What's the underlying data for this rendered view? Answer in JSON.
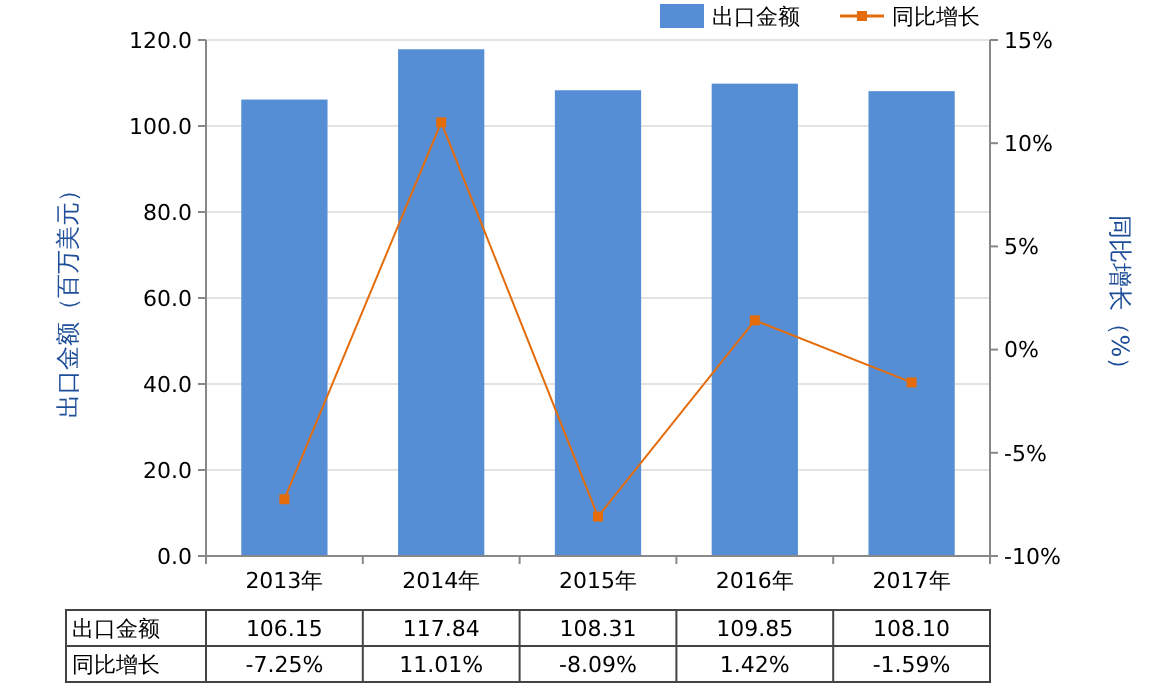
{
  "chart_data": {
    "type": "bar",
    "xlabel": null,
    "ylabel": "出口金额（百万美元）",
    "y2label": "同比增长（%）",
    "categories": [
      "2013年",
      "2014年",
      "2015年",
      "2016年",
      "2017年"
    ],
    "series": [
      {
        "name": "出口金额",
        "color": "#558ed5",
        "values": [
          106.15,
          117.84,
          108.31,
          109.85,
          108.1
        ],
        "value_labels": [
          "106.15",
          "117.84",
          "108.31",
          "109.85",
          "108.10"
        ]
      },
      {
        "name": "同比增长",
        "type": "line",
        "axis": "y2",
        "color": "#e46c0a",
        "values": [
          -7.25,
          11.01,
          -8.09,
          1.42,
          -1.59
        ],
        "value_labels": [
          "-7.25%",
          "11.01%",
          "-8.09%",
          "1.42%",
          "-1.59%"
        ]
      }
    ],
    "ylim": [
      0,
      120
    ],
    "yticks": [
      {
        "value": 0,
        "label": "0.0"
      },
      {
        "value": 20,
        "label": "20.0"
      },
      {
        "value": 40,
        "label": "40.0"
      },
      {
        "value": 60,
        "label": "60.0"
      },
      {
        "value": 80,
        "label": "80.0"
      },
      {
        "value": 100,
        "label": "100.0"
      },
      {
        "value": 120,
        "label": "120.0"
      }
    ],
    "y2lim": [
      -10,
      15
    ],
    "y2ticks": [
      {
        "value": -10,
        "label": "-10%"
      },
      {
        "value": -5,
        "label": "-5%"
      },
      {
        "value": 0,
        "label": "0%"
      },
      {
        "value": 5,
        "label": "5%"
      },
      {
        "value": 10,
        "label": "10%"
      },
      {
        "value": 15,
        "label": "15%"
      }
    ],
    "grid": "y",
    "legend": "top right",
    "marker": "square",
    "line_style": "solid",
    "data_labels": true
  }
}
